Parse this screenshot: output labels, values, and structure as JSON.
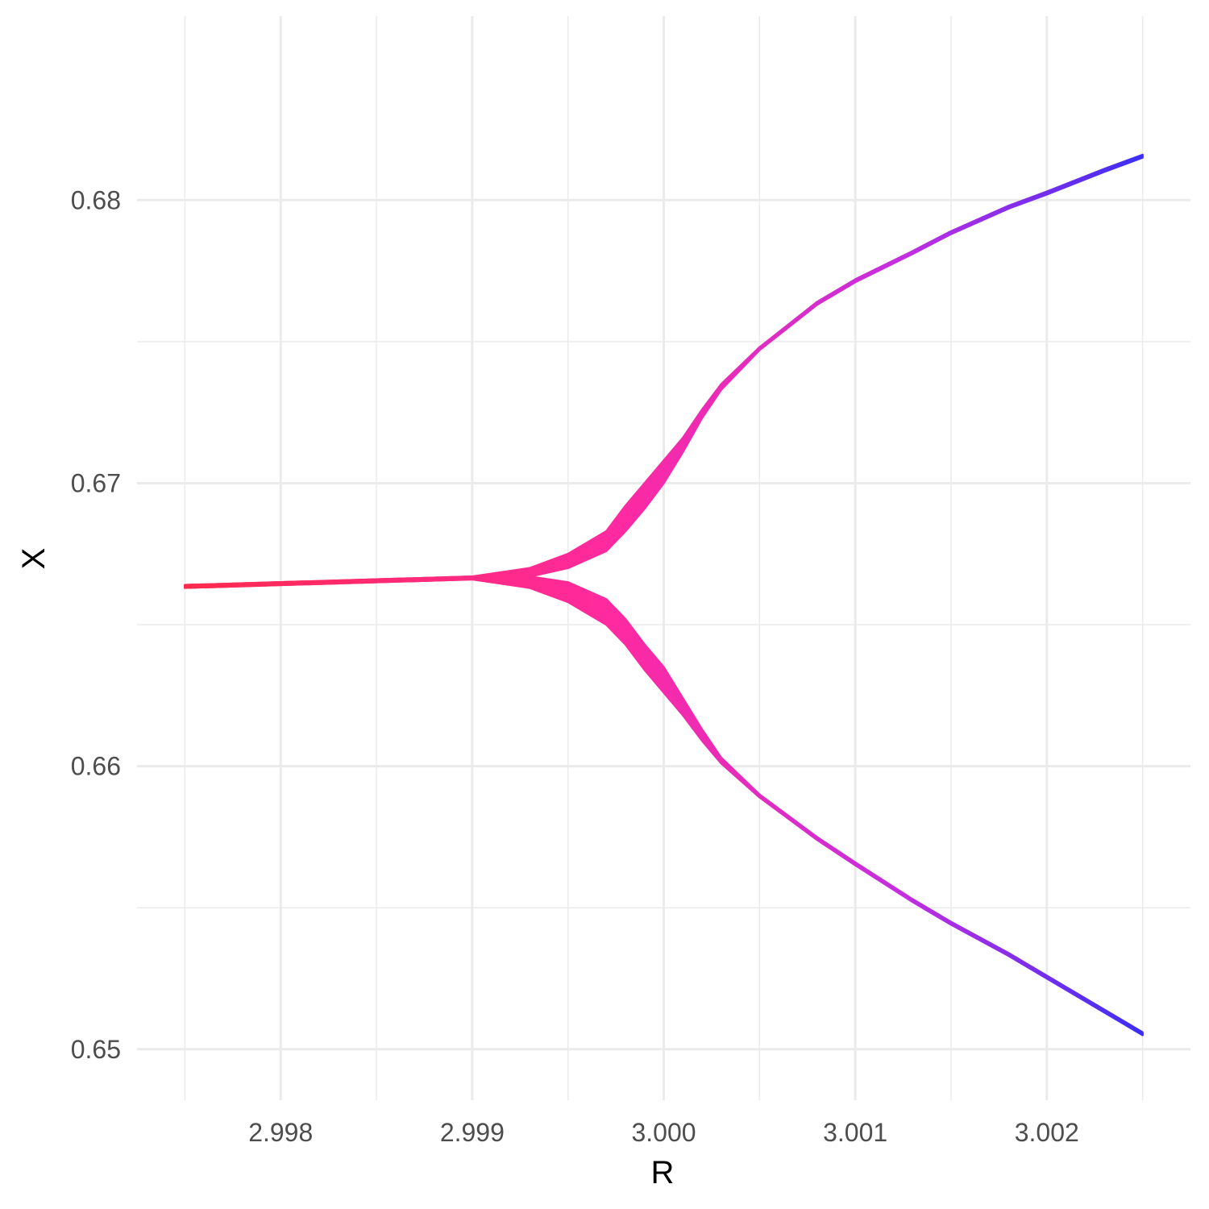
{
  "chart_data": {
    "type": "scatter",
    "title": "",
    "xlabel": "R",
    "ylabel": "X",
    "xlim": [
      2.99725,
      3.00275
    ],
    "ylim": [
      0.6482,
      0.6865
    ],
    "x_major_ticks": [
      2.998,
      2.999,
      3.0,
      3.001,
      3.002
    ],
    "x_tick_labels": [
      "2.998",
      "2.999",
      "3.000",
      "3.001",
      "3.002"
    ],
    "x_minor_ticks": [
      2.9975,
      2.9985,
      2.9995,
      3.0005,
      3.0015,
      3.0025
    ],
    "y_major_ticks": [
      0.65,
      0.66,
      0.67,
      0.68
    ],
    "y_tick_labels": [
      "0.65",
      "0.66",
      "0.67",
      "0.68"
    ],
    "y_minor_ticks": [
      0.655,
      0.665,
      0.675
    ],
    "grid": true,
    "legend": "none",
    "color_gradient": [
      "#ff2a4d",
      "#ff2aa0",
      "#c42ee0",
      "#3c2ef5"
    ],
    "series": [
      {
        "band": "upper",
        "x": [
          2.9975,
          2.998,
          2.9985,
          2.999,
          2.9993,
          2.9995,
          2.9997,
          2.9998,
          2.9999,
          3.0,
          3.0001,
          3.0002,
          3.0003,
          3.0005,
          3.0008,
          3.001,
          3.0013,
          3.0015,
          3.0018,
          3.002,
          3.0023,
          3.0025
        ],
        "y_min": [
          0.6663,
          0.6664,
          0.6665,
          0.6666,
          0.6667,
          0.667,
          0.6676,
          0.6683,
          0.6691,
          0.67,
          0.6711,
          0.6723,
          0.6733,
          0.6747,
          0.6763,
          0.6771,
          0.6781,
          0.6788,
          0.6797,
          0.6802,
          0.681,
          0.6815
        ],
        "y_max": [
          0.6664,
          0.6665,
          0.6666,
          0.6667,
          0.667,
          0.6675,
          0.6683,
          0.6692,
          0.67,
          0.6708,
          0.6716,
          0.6726,
          0.6735,
          0.6748,
          0.6764,
          0.6772,
          0.6782,
          0.6789,
          0.6798,
          0.6803,
          0.6811,
          0.6816
        ]
      },
      {
        "band": "lower",
        "x": [
          2.9975,
          2.998,
          2.9985,
          2.999,
          2.9993,
          2.9995,
          2.9997,
          2.9998,
          2.9999,
          3.0,
          3.0001,
          3.0002,
          3.0003,
          3.0005,
          3.0008,
          3.001,
          3.0013,
          3.0015,
          3.0018,
          3.002,
          3.0023,
          3.0025
        ],
        "y_min": [
          0.6663,
          0.6664,
          0.6665,
          0.6666,
          0.6663,
          0.6658,
          0.665,
          0.6643,
          0.6634,
          0.6626,
          0.6618,
          0.6609,
          0.6601,
          0.6589,
          0.6574,
          0.6565,
          0.6552,
          0.6544,
          0.6533,
          0.6525,
          0.6513,
          0.6505
        ],
        "y_max": [
          0.6664,
          0.6665,
          0.6666,
          0.6667,
          0.6667,
          0.6665,
          0.6659,
          0.6652,
          0.6643,
          0.6635,
          0.6624,
          0.6613,
          0.6603,
          0.659,
          0.6575,
          0.6566,
          0.6553,
          0.6545,
          0.6534,
          0.6526,
          0.6514,
          0.6506
        ]
      }
    ]
  }
}
